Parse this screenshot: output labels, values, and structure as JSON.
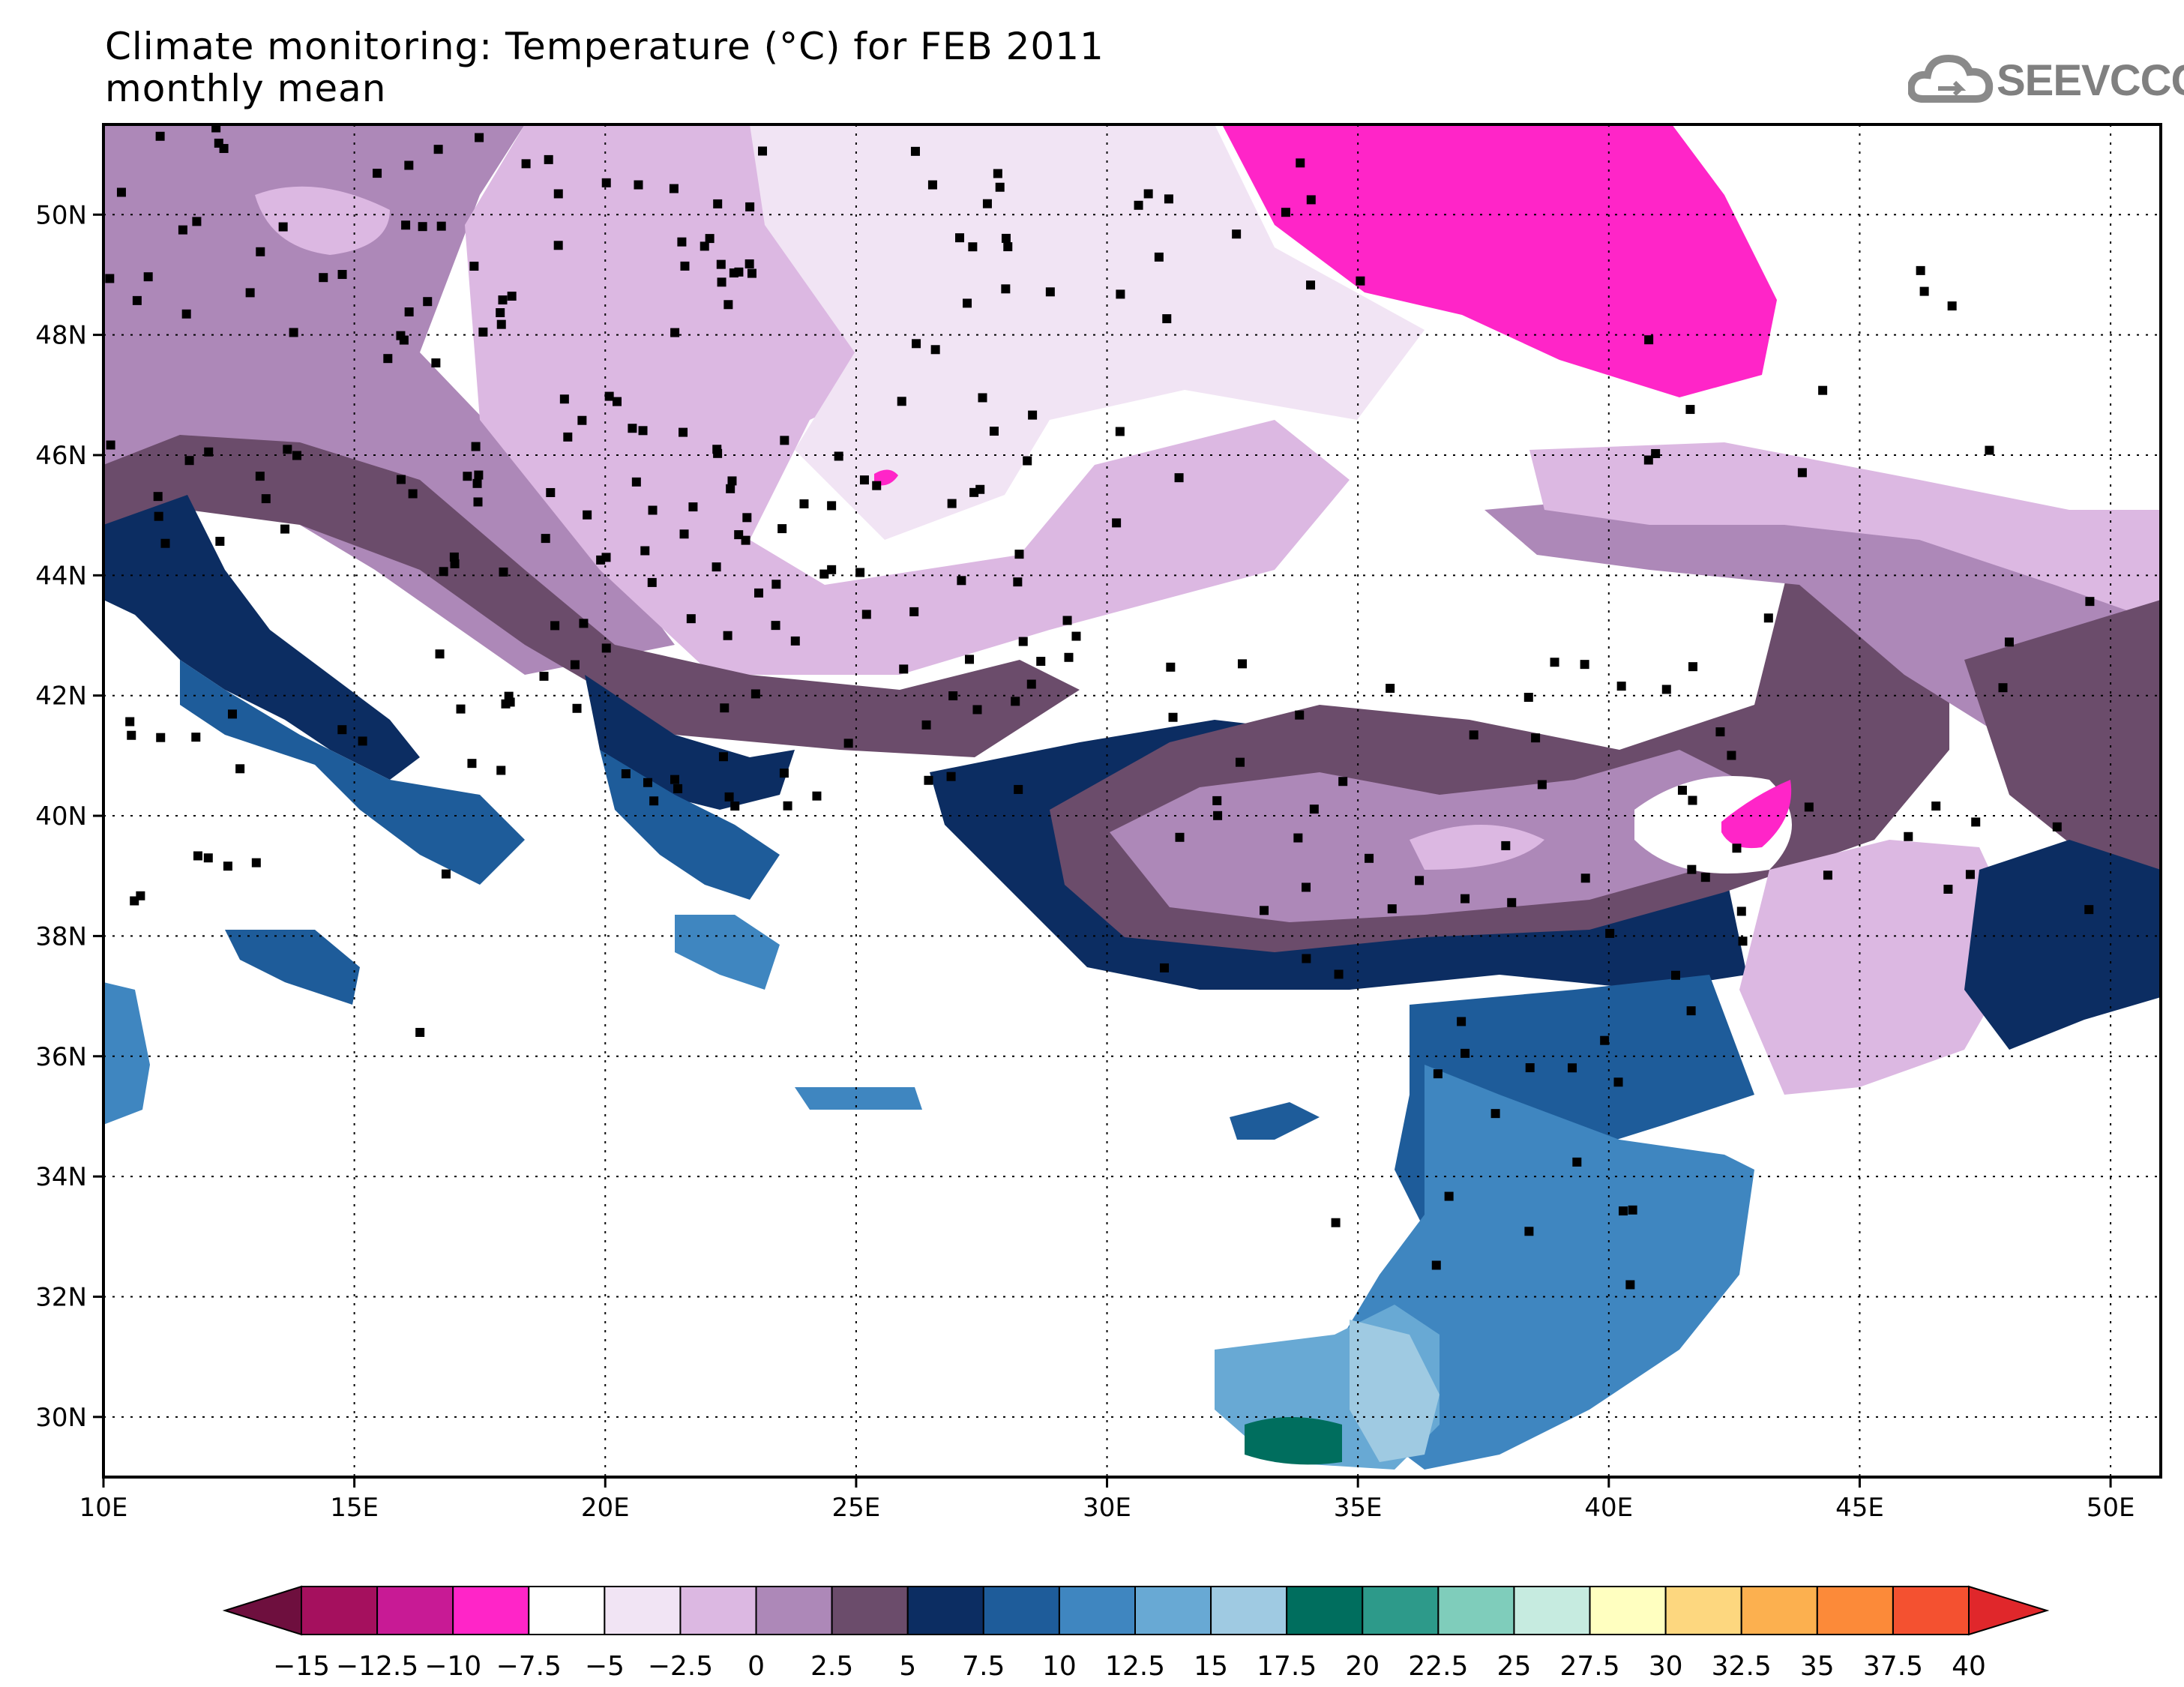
{
  "header": {
    "title_line1": "Climate monitoring: Temperature (°C) for FEB 2011",
    "title_line2": "monthly mean",
    "logo_text": "SEEVCCC"
  },
  "map": {
    "lon_range": [
      10,
      51
    ],
    "lat_range": [
      29,
      51.5
    ],
    "lon_ticks": [
      "10E",
      "15E",
      "20E",
      "25E",
      "30E",
      "35E",
      "40E",
      "45E",
      "50E"
    ],
    "lat_ticks": [
      "30N",
      "32N",
      "34N",
      "36N",
      "38N",
      "40N",
      "42N",
      "44N",
      "46N",
      "48N",
      "50N"
    ],
    "grid": "dotted"
  },
  "colorbar": {
    "labels": [
      "−15",
      "−12.5",
      "−10",
      "−7.5",
      "−5",
      "−2.5",
      "0",
      "2.5",
      "5",
      "7.5",
      "10",
      "12.5",
      "15",
      "17.5",
      "20",
      "22.5",
      "25",
      "27.5",
      "30",
      "32.5",
      "35",
      "37.5",
      "40"
    ],
    "under_color": "#6e0f3e",
    "over_color": "#e0272b",
    "colors": [
      "#a5105e",
      "#c81a95",
      "#ff25c8",
      "#ffffff",
      "#f1e4f4",
      "#dcb8e2",
      "#ad88b8",
      "#6b4c6b",
      "#0c2d62",
      "#1e5c9a",
      "#3f86c0",
      "#68a9d4",
      "#9fcae2",
      "#006e5e",
      "#2d9a8a",
      "#7fcdbb",
      "#c6ebe0",
      "#ffffc0",
      "#fdd77f",
      "#fcb04f",
      "#fc8a39",
      "#f45130"
    ]
  }
}
